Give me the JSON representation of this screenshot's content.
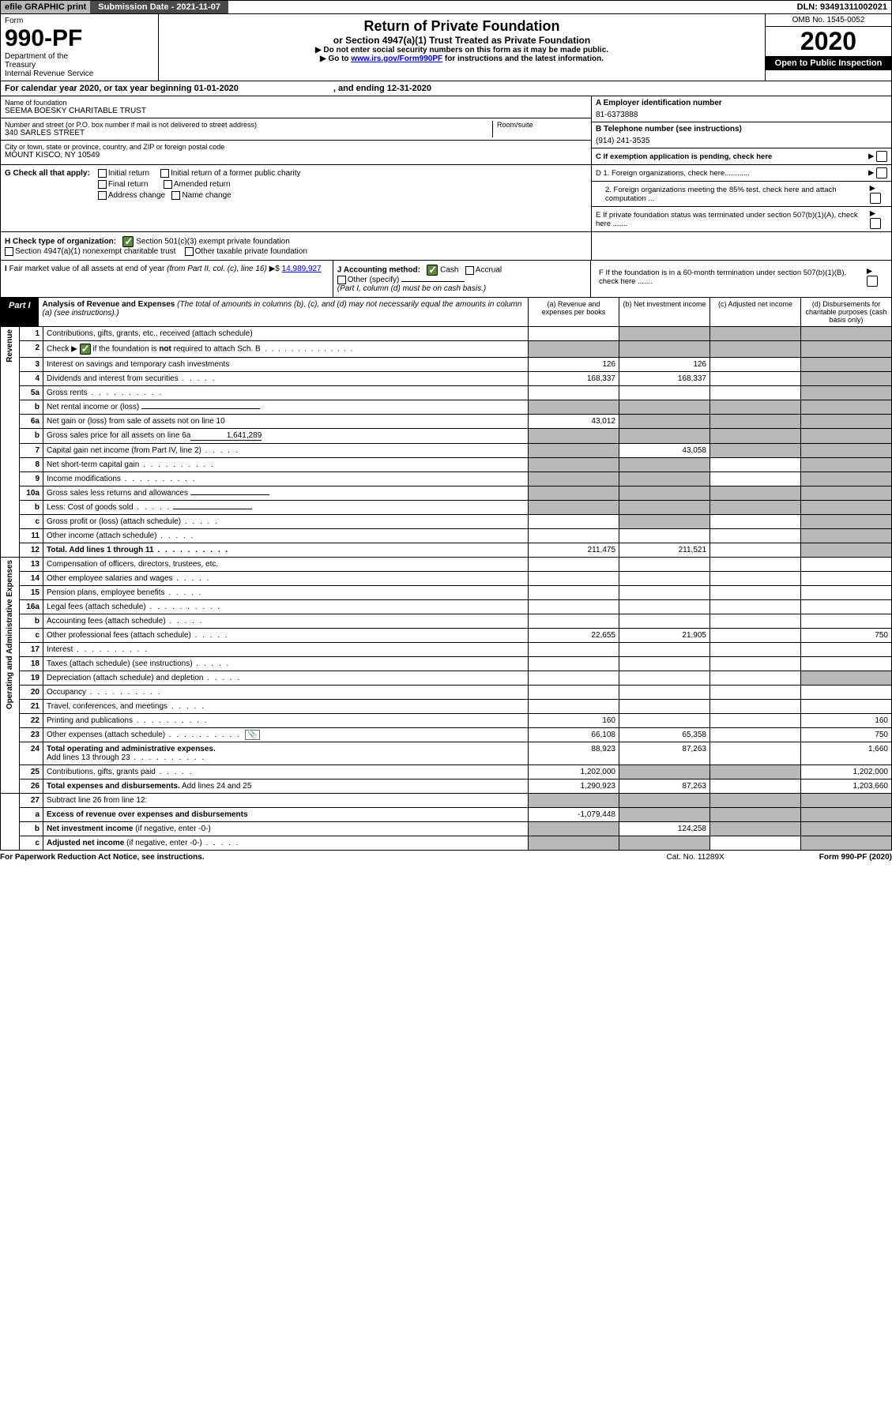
{
  "topbar": {
    "efile": "efile GRAPHIC print",
    "submission": "Submission Date - 2021-11-07",
    "dln": "DLN: 93491311002021"
  },
  "header": {
    "form_label": "Form",
    "form_num": "990-PF",
    "dept": "Department of the Treasury\nInternal Revenue Service",
    "title": "Return of Private Foundation",
    "subtitle": "or Section 4947(a)(1) Trust Treated as Private Foundation",
    "note1": "▶ Do not enter social security numbers on this form as it may be made public.",
    "note2_pre": "▶ Go to ",
    "note2_link": "www.irs.gov/Form990PF",
    "note2_post": " for instructions and the latest information.",
    "omb": "OMB No. 1545-0052",
    "year": "2020",
    "open": "Open to Public Inspection"
  },
  "calyear": {
    "pre": "For calendar year 2020, or tax year beginning 01-01-2020",
    "end": ", and ending 12-31-2020"
  },
  "info": {
    "name_label": "Name of foundation",
    "name": "SEEMA BOESKY CHARITABLE TRUST",
    "addr_label": "Number and street (or P.O. box number if mail is not delivered to street address)",
    "addr": "340 SARLES STREET",
    "room_label": "Room/suite",
    "city_label": "City or town, state or province, country, and ZIP or foreign postal code",
    "city": "MOUNT KISCO, NY  10549",
    "ein_label": "A Employer identification number",
    "ein": "81-6373888",
    "phone_label": "B Telephone number (see instructions)",
    "phone": "(914) 241-3535",
    "c_label": "C If exemption application is pending, check here",
    "g_label": "G Check all that apply:",
    "g_opts": [
      "Initial return",
      "Initial return of a former public charity",
      "Final return",
      "Amended return",
      "Address change",
      "Name change"
    ],
    "d1": "D 1. Foreign organizations, check here............",
    "d2": "2. Foreign organizations meeting the 85% test, check here and attach computation ...",
    "e": "E  If private foundation status was terminated under section 507(b)(1)(A), check here .......",
    "h_label": "H Check type of organization:",
    "h1": "Section 501(c)(3) exempt private foundation",
    "h2": "Section 4947(a)(1) nonexempt charitable trust",
    "h3": "Other taxable private foundation",
    "i_label": "I Fair market value of all assets at end of year (from Part II, col. (c), line 16) ▶$ ",
    "i_val": "14,989,927",
    "j_label": "J Accounting method:",
    "j_cash": "Cash",
    "j_accrual": "Accrual",
    "j_other": "Other (specify)",
    "j_note": "(Part I, column (d) must be on cash basis.)",
    "f": "F  If the foundation is in a 60-month termination under section 507(b)(1)(B), check here ......."
  },
  "part1": {
    "label": "Part I",
    "title": "Analysis of Revenue and Expenses",
    "title_note": "(The total of amounts in columns (b), (c), and (d) may not necessarily equal the amounts in column (a) (see instructions).)",
    "cols": [
      "(a)   Revenue and expenses per books",
      "(b)   Net investment income",
      "(c)   Adjusted net income",
      "(d)  Disbursements for charitable purposes (cash basis only)"
    ]
  },
  "rows": [
    {
      "n": "1",
      "d": "shade",
      "a": "",
      "b": "shade",
      "c": "shade"
    },
    {
      "n": "2",
      "d": "shade",
      "dots": 1,
      "a": "shade",
      "b": "shade",
      "c": "shade",
      "bold_not": 1
    },
    {
      "n": "3",
      "d": "shade",
      "a": "126",
      "b": "126",
      "c": ""
    },
    {
      "n": "4",
      "d": "shade",
      "dots": "s",
      "a": "168,337",
      "b": "168,337",
      "c": ""
    },
    {
      "n": "5a",
      "d": "shade",
      "dots": 1,
      "a": "",
      "b": "",
      "c": ""
    },
    {
      "n": "b",
      "d": "shade",
      "uline": 1,
      "a": "shade",
      "b": "shade",
      "c": "shade"
    },
    {
      "n": "6a",
      "d": "shade",
      "a": "43,012",
      "b": "shade",
      "c": "shade"
    },
    {
      "n": "b",
      "d": "shade",
      "uline": "1,641,289",
      "a": "shade",
      "b": "shade",
      "c": "shade"
    },
    {
      "n": "7",
      "d": "shade",
      "dots": "s",
      "a": "shade",
      "b": "43,058",
      "c": "shade"
    },
    {
      "n": "8",
      "d": "shade",
      "dots": 1,
      "a": "shade",
      "b": "shade",
      "c": ""
    },
    {
      "n": "9",
      "d": "shade",
      "dots": 1,
      "a": "shade",
      "b": "shade",
      "c": ""
    },
    {
      "n": "10a",
      "d": "shade",
      "uline": 1,
      "a": "shade",
      "b": "shade",
      "c": "shade"
    },
    {
      "n": "b",
      "d": "shade",
      "dots": "s",
      "uline": 1,
      "a": "shade",
      "b": "shade",
      "c": "shade"
    },
    {
      "n": "c",
      "d": "shade",
      "dots": "s",
      "a": "",
      "b": "shade",
      "c": ""
    },
    {
      "n": "11",
      "d": "shade",
      "dots": "s",
      "a": "",
      "b": "",
      "c": ""
    },
    {
      "n": "12",
      "d": "shade",
      "dots": 1,
      "bold": 1,
      "a": "211,475",
      "b": "211,521",
      "c": ""
    }
  ],
  "rows2": [
    {
      "n": "13",
      "d": "",
      "a": "",
      "b": "",
      "c": ""
    },
    {
      "n": "14",
      "d": "",
      "dots": "s",
      "a": "",
      "b": "",
      "c": ""
    },
    {
      "n": "15",
      "d": "",
      "dots": "s",
      "a": "",
      "b": "",
      "c": ""
    },
    {
      "n": "16a",
      "d": "",
      "dots": 1,
      "a": "",
      "b": "",
      "c": ""
    },
    {
      "n": "b",
      "d": "",
      "dots": "s",
      "a": "",
      "b": "",
      "c": ""
    },
    {
      "n": "c",
      "d": "750",
      "dots": "s",
      "a": "22,655",
      "b": "21,905",
      "c": ""
    },
    {
      "n": "17",
      "d": "",
      "dots": 1,
      "a": "",
      "b": "",
      "c": ""
    },
    {
      "n": "18",
      "d": "",
      "dots": "s",
      "a": "",
      "b": "",
      "c": ""
    },
    {
      "n": "19",
      "d": "shade",
      "dots": "s",
      "a": "",
      "b": "",
      "c": ""
    },
    {
      "n": "20",
      "d": "",
      "dots": 1,
      "a": "",
      "b": "",
      "c": ""
    },
    {
      "n": "21",
      "d": "",
      "dots": "s",
      "a": "",
      "b": "",
      "c": ""
    },
    {
      "n": "22",
      "d": "160",
      "dots": 1,
      "a": "160",
      "b": "",
      "c": ""
    },
    {
      "n": "23",
      "d": "750",
      "dots": 1,
      "icon": 1,
      "a": "66,108",
      "b": "65,358",
      "c": ""
    },
    {
      "n": "24",
      "d": "shade-nb",
      "bold": 1,
      "a": "shade-nb",
      "b": "shade-nb",
      "c": "shade-nb"
    },
    {
      "n": "",
      "d": "1,660",
      "dots": 1,
      "a": "88,923",
      "b": "87,263",
      "c": ""
    },
    {
      "n": "25",
      "d": "1,202,000",
      "dots": "s",
      "a": "1,202,000",
      "b": "shade",
      "c": "shade"
    },
    {
      "n": "26",
      "d": "1,203,660",
      "bold": 1,
      "a": "1,290,923",
      "b": "87,263",
      "c": ""
    }
  ],
  "rows3": [
    {
      "n": "27",
      "d": "shade",
      "a": "shade",
      "b": "shade",
      "c": "shade"
    },
    {
      "n": "a",
      "d": "shade",
      "bold": 1,
      "a": "-1,079,448",
      "b": "shade",
      "c": "shade"
    },
    {
      "n": "b",
      "d": "shade",
      "bold": 1,
      "a": "shade",
      "b": "124,258",
      "c": "shade"
    },
    {
      "n": "c",
      "d": "shade",
      "bold": 1,
      "dots": "s",
      "a": "shade",
      "b": "shade",
      "c": ""
    }
  ],
  "sidelabels": {
    "rev": "Revenue",
    "exp": "Operating and Administrative Expenses"
  },
  "footer": {
    "l": "For Paperwork Reduction Act Notice, see instructions.",
    "m": "Cat. No. 11289X",
    "r": "Form 990-PF (2020)"
  }
}
